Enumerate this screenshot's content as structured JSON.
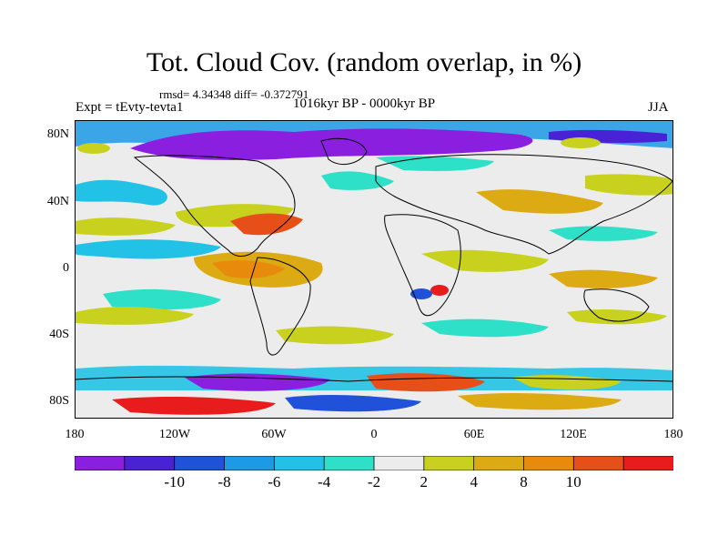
{
  "title": "Tot. Cloud Cov. (random overlap, in %)",
  "stats": "rmsd= 4.34348 diff= -0.372791",
  "experiment": "Expt = tEvty-tevta1",
  "period": "1016kyr BP - 0000kyr BP",
  "season": "JJA",
  "lat_labels": [
    "80N",
    "40N",
    "0",
    "40S",
    "80S"
  ],
  "lon_labels": [
    "180",
    "120W",
    "60W",
    "0",
    "60E",
    "120E",
    "180"
  ],
  "colorbar": {
    "colors": [
      "#8b1fe0",
      "#4a22d6",
      "#1f52d8",
      "#1c9ae6",
      "#22c2e6",
      "#2ee0c8",
      "#ececec",
      "#c8d21e",
      "#dcaa12",
      "#e88a0c",
      "#e65018",
      "#e81c1c"
    ],
    "labels": [
      "-10",
      "-8",
      "-6",
      "-4",
      "-2",
      "2",
      "4",
      "8",
      "10"
    ]
  },
  "map": {
    "lon_range": [
      -180,
      180
    ],
    "lat_range": [
      -90,
      90
    ]
  }
}
